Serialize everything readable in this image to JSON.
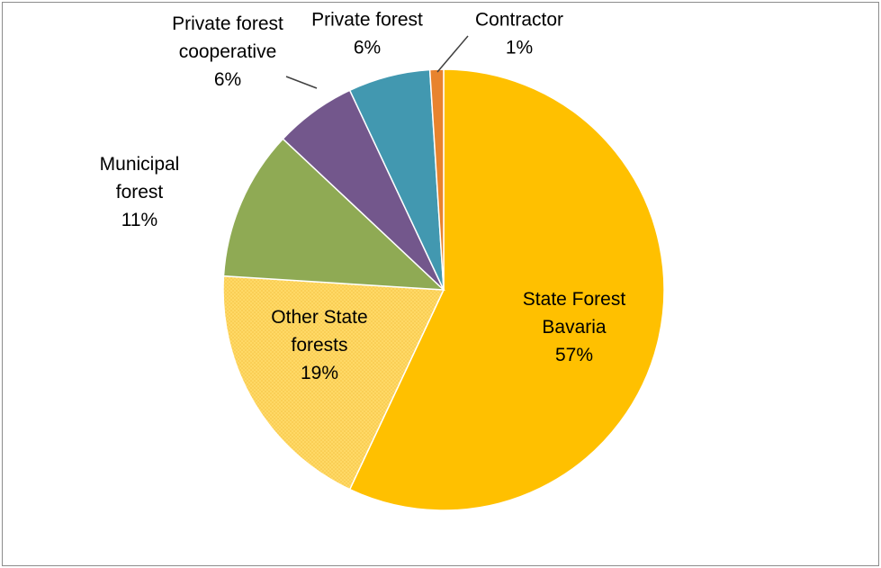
{
  "chart_data": {
    "type": "pie",
    "title": "",
    "slices": [
      {
        "label_lines": [
          "State Forest",
          "Bavaria"
        ],
        "percent_label": "57%",
        "value": 57,
        "color": "#ffc000",
        "pattern": false
      },
      {
        "label_lines": [
          "Other State",
          "forests"
        ],
        "percent_label": "19%",
        "value": 19,
        "color": "#ffd966",
        "pattern": true
      },
      {
        "label_lines": [
          "Municipal",
          "forest"
        ],
        "percent_label": "11%",
        "value": 11,
        "color": "#8faa54",
        "pattern": false
      },
      {
        "label_lines": [
          "Private forest",
          "cooperative"
        ],
        "percent_label": "6%",
        "value": 6,
        "color": "#73578c",
        "pattern": false
      },
      {
        "label_lines": [
          "Private forest"
        ],
        "percent_label": "6%",
        "value": 6,
        "color": "#4298b0",
        "pattern": false
      },
      {
        "label_lines": [
          "Contractor"
        ],
        "percent_label": "1%",
        "value": 1,
        "color": "#e8832e",
        "pattern": false
      }
    ]
  }
}
